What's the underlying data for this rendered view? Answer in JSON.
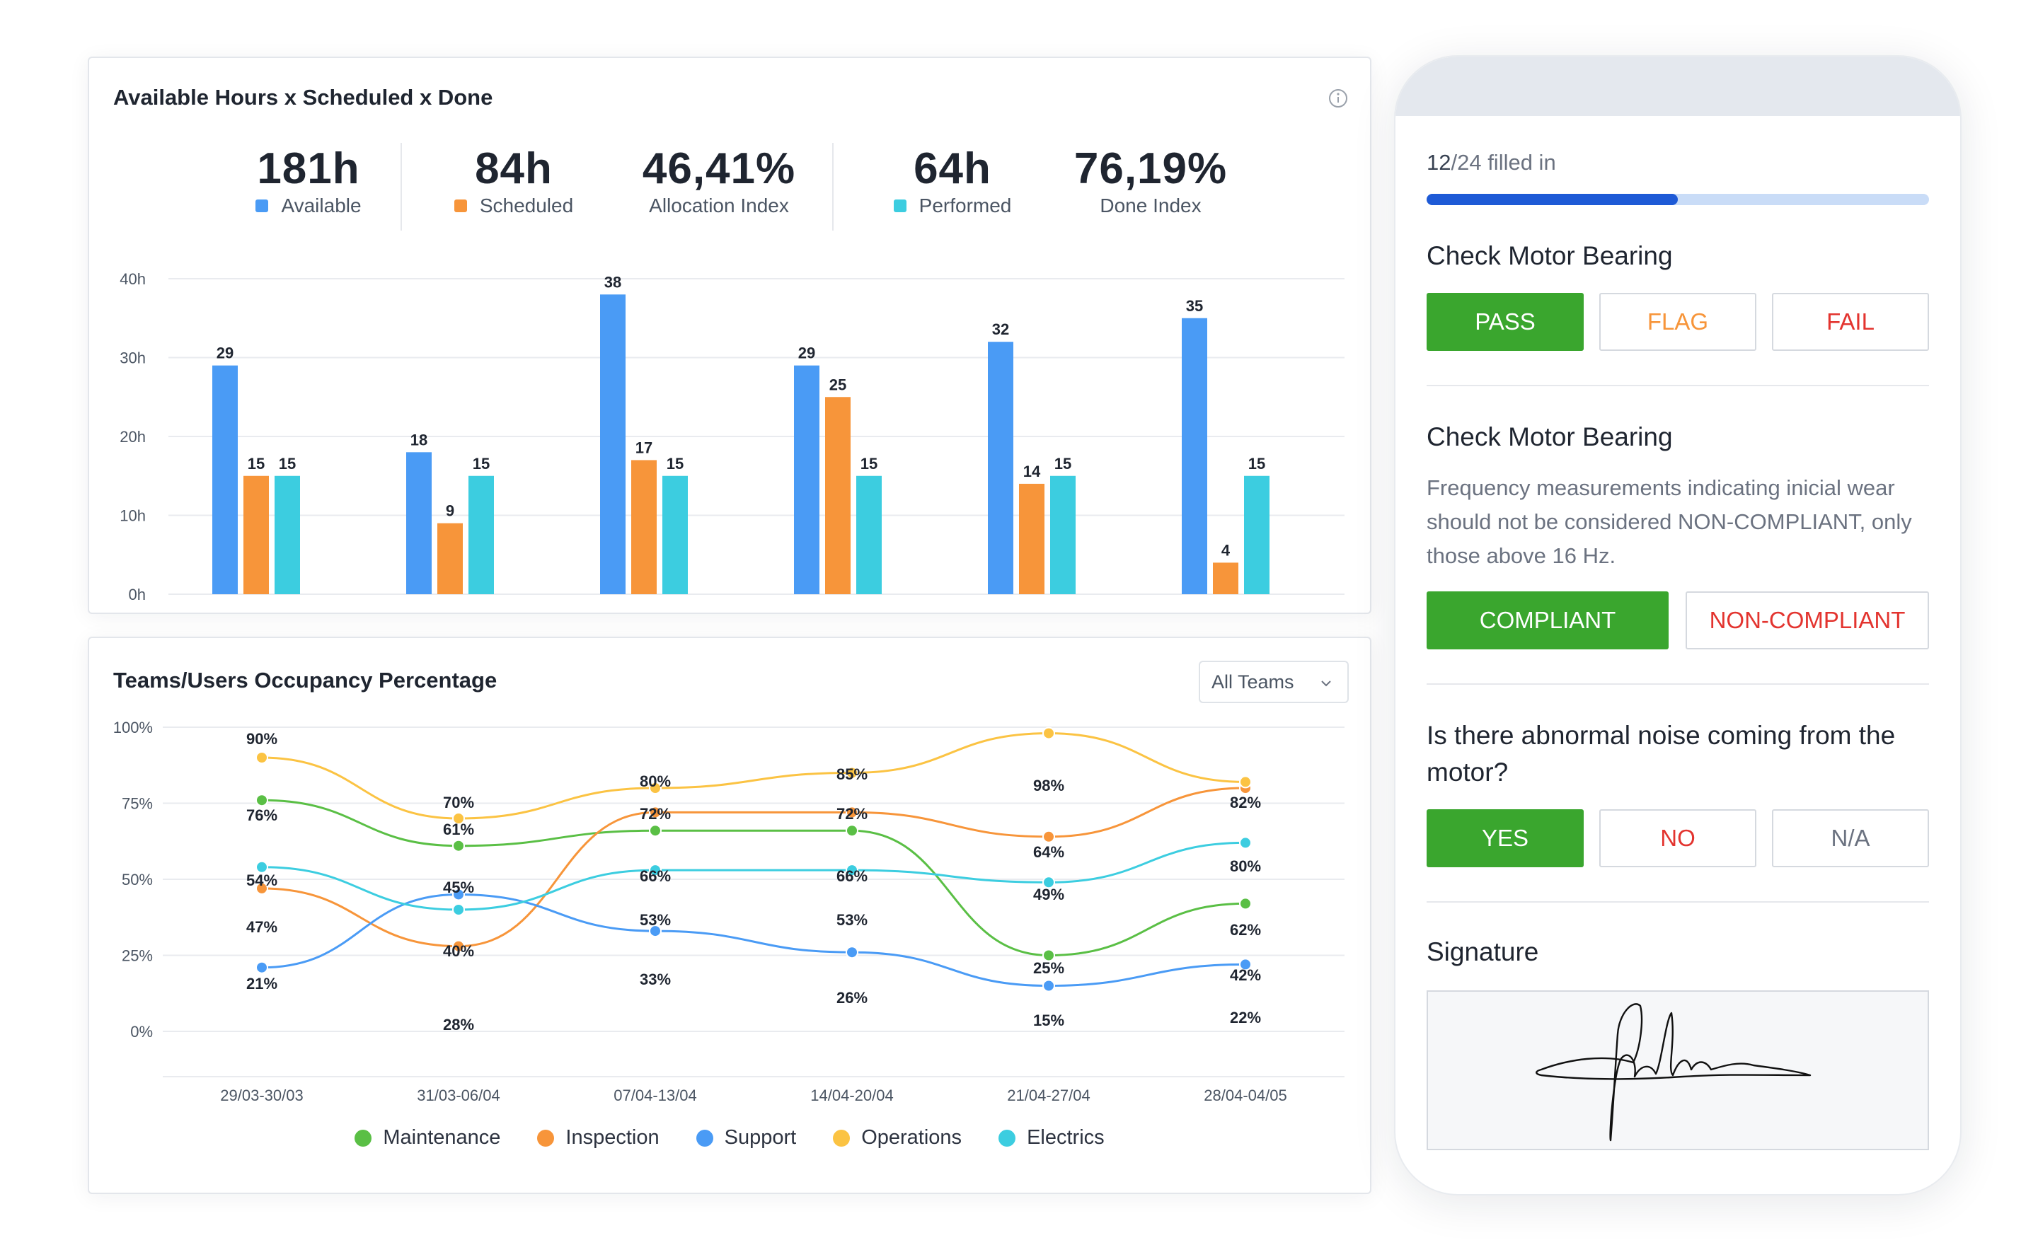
{
  "card1": {
    "title": "Available Hours x Scheduled x Done",
    "kpis": [
      {
        "value": "181h",
        "label": "Available",
        "color": "#4a9bf5"
      },
      {
        "value": "84h",
        "label": "Scheduled",
        "color": "#f7953a"
      },
      {
        "value": "46,41%",
        "label": "Allocation Index"
      },
      {
        "value": "64h",
        "label": "Performed",
        "color": "#3ccde0"
      },
      {
        "value": "76,19%",
        "label": "Done Index"
      }
    ]
  },
  "card2": {
    "title": "Teams/Users Occupancy Percentage",
    "filter_value": "All Teams"
  },
  "chart_data": [
    {
      "type": "bar",
      "title": "Available Hours x Scheduled x Done",
      "categories": [
        "29/03-30/03",
        "31/03-06/04",
        "07/04-13/04",
        "14/04-20/04",
        "21/04-27/04",
        "28/04-04/05"
      ],
      "yticks": [
        "0h",
        "10h",
        "20h",
        "30h",
        "40h"
      ],
      "ylim": [
        0,
        40
      ],
      "grid": true,
      "series": [
        {
          "name": "Available",
          "color": "#4a9bf5",
          "values": [
            29,
            18,
            38,
            29,
            32,
            35
          ]
        },
        {
          "name": "Scheduled",
          "color": "#f7953a",
          "values": [
            15,
            9,
            17,
            25,
            14,
            4
          ]
        },
        {
          "name": "Performed",
          "color": "#3ccde0",
          "values": [
            15,
            15,
            15,
            15,
            15,
            15
          ]
        }
      ]
    },
    {
      "type": "line",
      "title": "Teams/Users Occupancy Percentage",
      "categories": [
        "29/03-30/03",
        "31/03-06/04",
        "07/04-13/04",
        "14/04-20/04",
        "21/04-27/04",
        "28/04-04/05"
      ],
      "yticks": [
        "0%",
        "25%",
        "50%",
        "75%",
        "100%"
      ],
      "ylim": [
        0,
        100
      ],
      "grid": true,
      "legend_position": "bottom",
      "series": [
        {
          "name": "Maintenance",
          "color": "#5abf45",
          "values": [
            76,
            61,
            66,
            66,
            25,
            42
          ]
        },
        {
          "name": "Inspection",
          "color": "#f7953a",
          "values": [
            47,
            28,
            72,
            72,
            64,
            80
          ]
        },
        {
          "name": "Support",
          "color": "#4a9bf5",
          "values": [
            21,
            45,
            33,
            26,
            15,
            22
          ]
        },
        {
          "name": "Operations",
          "color": "#fbc343",
          "values": [
            90,
            70,
            80,
            85,
            98,
            82
          ]
        },
        {
          "name": "Electrics",
          "color": "#3ccde0",
          "values": [
            54,
            40,
            53,
            53,
            49,
            62
          ]
        }
      ],
      "value_labels": [
        [
          "90%",
          "70%",
          "80%",
          "85%",
          "98%",
          "82%"
        ],
        [
          "76%",
          "61%",
          "72%",
          "72%",
          "64%",
          "80%"
        ],
        [
          "54%",
          "45%",
          "66%",
          "66%",
          "49%",
          "62%"
        ],
        [
          "47%",
          "40%",
          "53%",
          "53%",
          "25%",
          "42%"
        ],
        [
          "21%",
          "28%",
          "33%",
          "26%",
          "15%",
          "22%"
        ]
      ]
    }
  ],
  "phone": {
    "progress": {
      "filled": "12",
      "rest": "/24 filled in",
      "fraction": 0.5
    },
    "q1": {
      "title": "Check Motor Bearing",
      "buttons": [
        "PASS",
        "FLAG",
        "FAIL"
      ]
    },
    "q2": {
      "title": "Check Motor Bearing",
      "description": "Frequency measurements indicating inicial wear should not be considered NON-COMPLIANT, only those above 16 Hz.",
      "buttons": [
        "COMPLIANT",
        "NON-COMPLIANT"
      ]
    },
    "q3": {
      "title": "Is there abnormal noise coming from the motor?",
      "buttons": [
        "YES",
        "NO",
        "N/A"
      ]
    },
    "signature": {
      "title": "Signature"
    }
  },
  "colors": {
    "green": "#3aa62e",
    "flag": "#f7953a",
    "fail": "#e3342f",
    "progress": "#1e5ad6"
  }
}
